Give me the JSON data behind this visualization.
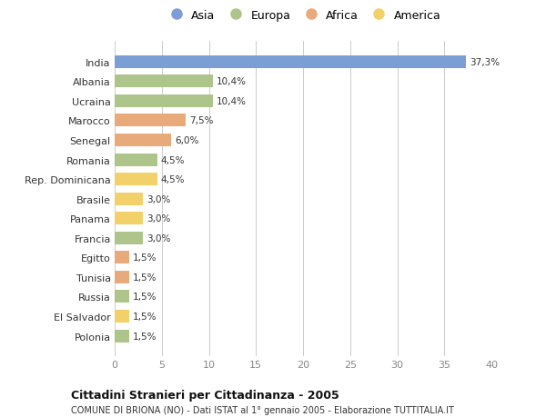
{
  "countries": [
    "India",
    "Albania",
    "Ucraina",
    "Marocco",
    "Senegal",
    "Romania",
    "Rep. Dominicana",
    "Brasile",
    "Panama",
    "Francia",
    "Egitto",
    "Tunisia",
    "Russia",
    "El Salvador",
    "Polonia"
  ],
  "values": [
    37.3,
    10.4,
    10.4,
    7.5,
    6.0,
    4.5,
    4.5,
    3.0,
    3.0,
    3.0,
    1.5,
    1.5,
    1.5,
    1.5,
    1.5
  ],
  "labels": [
    "37,3%",
    "10,4%",
    "10,4%",
    "7,5%",
    "6,0%",
    "4,5%",
    "4,5%",
    "3,0%",
    "3,0%",
    "3,0%",
    "1,5%",
    "1,5%",
    "1,5%",
    "1,5%",
    "1,5%"
  ],
  "continents": [
    "Asia",
    "Europa",
    "Europa",
    "Africa",
    "Africa",
    "Europa",
    "America",
    "America",
    "America",
    "Europa",
    "Africa",
    "Africa",
    "Europa",
    "America",
    "Europa"
  ],
  "colors": {
    "Asia": "#7b9fd4",
    "Europa": "#adc48a",
    "Africa": "#e8aa7a",
    "America": "#f2d06a"
  },
  "legend_order": [
    "Asia",
    "Europa",
    "Africa",
    "America"
  ],
  "title": "Cittadini Stranieri per Cittadinanza - 2005",
  "subtitle": "COMUNE DI BRIONA (NO) - Dati ISTAT al 1° gennaio 2005 - Elaborazione TUTTITALIA.IT",
  "xlim": [
    0,
    40
  ],
  "xticks": [
    0,
    5,
    10,
    15,
    20,
    25,
    30,
    35,
    40
  ],
  "background_color": "#ffffff",
  "grid_color": "#cccccc",
  "bar_height": 0.65
}
